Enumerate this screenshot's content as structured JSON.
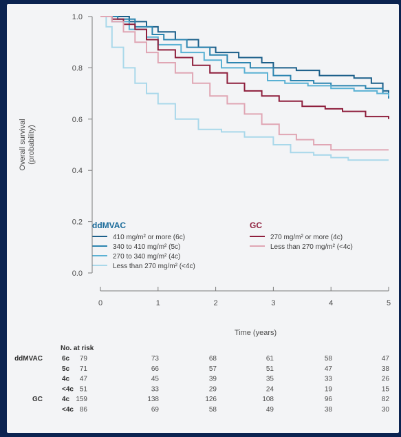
{
  "chart_data": {
    "type": "line",
    "xlabel": "Time (years)",
    "ylabel": [
      "Overall survival",
      "(probability)"
    ],
    "xlim": [
      0,
      5
    ],
    "ylim": [
      0,
      1
    ],
    "x_ticks": [
      "0",
      "1",
      "2",
      "3",
      "4",
      "5"
    ],
    "y_ticks": [
      "0.0",
      "0.2",
      "0.4",
      "0.6",
      "0.8",
      "1.0"
    ],
    "legend_groups": [
      {
        "title": "ddMVAC",
        "color": "#1a6b9a"
      },
      {
        "title": "GC",
        "color": "#8e1e3c"
      }
    ],
    "series": [
      {
        "name": "410 mg/m² or more (6c)",
        "group": "ddMVAC",
        "color": "#1b5f8a",
        "x": [
          0,
          0.2,
          0.5,
          0.8,
          1.0,
          1.3,
          1.7,
          2.0,
          2.4,
          2.8,
          3.0,
          3.4,
          3.8,
          4.0,
          4.4,
          4.7,
          4.9,
          5.0
        ],
        "y": [
          1.0,
          1.0,
          0.98,
          0.96,
          0.94,
          0.91,
          0.88,
          0.86,
          0.84,
          0.82,
          0.8,
          0.79,
          0.77,
          0.77,
          0.76,
          0.74,
          0.71,
          0.68
        ]
      },
      {
        "name": "340 to 410 mg/m² (5c)",
        "group": "ddMVAC",
        "color": "#2c85b0",
        "x": [
          0,
          0.3,
          0.6,
          0.9,
          1.1,
          1.5,
          1.9,
          2.2,
          2.6,
          3.0,
          3.3,
          3.7,
          4.0,
          4.3,
          4.6,
          4.9,
          5.0
        ],
        "y": [
          1.0,
          0.99,
          0.96,
          0.93,
          0.91,
          0.88,
          0.85,
          0.82,
          0.8,
          0.77,
          0.75,
          0.74,
          0.73,
          0.73,
          0.72,
          0.7,
          0.68
        ]
      },
      {
        "name": "270 to 340 mg/m² (4c)",
        "group": "ddMVAC",
        "color": "#5ab1d4",
        "x": [
          0,
          0.2,
          0.5,
          0.8,
          1.0,
          1.4,
          1.8,
          2.1,
          2.5,
          2.9,
          3.2,
          3.6,
          4.0,
          4.4,
          4.8,
          5.0
        ],
        "y": [
          1.0,
          0.98,
          0.95,
          0.92,
          0.89,
          0.86,
          0.83,
          0.8,
          0.78,
          0.75,
          0.74,
          0.73,
          0.72,
          0.71,
          0.7,
          0.69
        ]
      },
      {
        "name": "Less than 270 mg/m² (<4c)",
        "group": "ddMVAC",
        "color": "#a9d8ea",
        "x": [
          0,
          0.1,
          0.2,
          0.4,
          0.6,
          0.8,
          1.0,
          1.3,
          1.7,
          2.1,
          2.5,
          3.0,
          3.3,
          3.7,
          4.0,
          4.3,
          4.7,
          5.0
        ],
        "y": [
          1.0,
          0.96,
          0.88,
          0.8,
          0.74,
          0.7,
          0.66,
          0.6,
          0.56,
          0.55,
          0.53,
          0.5,
          0.47,
          0.46,
          0.45,
          0.44,
          0.44,
          0.44
        ]
      },
      {
        "name": "270 mg/m² or more (4c)",
        "group": "GC",
        "color": "#8e1e3c",
        "x": [
          0,
          0.2,
          0.4,
          0.6,
          0.8,
          1.0,
          1.3,
          1.6,
          1.9,
          2.2,
          2.5,
          2.8,
          3.1,
          3.5,
          3.9,
          4.2,
          4.6,
          5.0
        ],
        "y": [
          1.0,
          0.99,
          0.97,
          0.95,
          0.91,
          0.87,
          0.84,
          0.81,
          0.78,
          0.74,
          0.71,
          0.69,
          0.67,
          0.65,
          0.64,
          0.63,
          0.61,
          0.6
        ]
      },
      {
        "name": "Less than 270 mg/m² (<4c)",
        "group": "GC",
        "color": "#e0a6b4",
        "x": [
          0,
          0.2,
          0.4,
          0.6,
          0.8,
          1.0,
          1.3,
          1.6,
          1.9,
          2.2,
          2.5,
          2.8,
          3.1,
          3.4,
          3.7,
          4.0,
          4.4,
          5.0
        ],
        "y": [
          1.0,
          0.98,
          0.94,
          0.9,
          0.86,
          0.82,
          0.78,
          0.74,
          0.69,
          0.66,
          0.62,
          0.58,
          0.54,
          0.52,
          0.5,
          0.48,
          0.48,
          0.48
        ]
      }
    ],
    "risk_table": {
      "title": "No. at risk",
      "time_points": [
        0,
        1,
        2,
        3,
        4,
        5
      ],
      "rows": [
        {
          "group": "ddMVAC",
          "label": "6c",
          "color": "#1a6b9a",
          "values": [
            "79",
            "73",
            "68",
            "61",
            "58",
            "47"
          ]
        },
        {
          "group": "",
          "label": "5c",
          "color": "#2c85b0",
          "values": [
            "71",
            "66",
            "57",
            "51",
            "47",
            "38"
          ]
        },
        {
          "group": "",
          "label": "4c",
          "color": "#5ab1d4",
          "values": [
            "47",
            "45",
            "39",
            "35",
            "33",
            "26"
          ]
        },
        {
          "group": "",
          "label": "<4c",
          "color": "#a9d8ea",
          "values": [
            "51",
            "33",
            "29",
            "24",
            "19",
            "15"
          ]
        },
        {
          "group": "GC",
          "label": "4c",
          "color": "#8e1e3c",
          "values": [
            "159",
            "138",
            "126",
            "108",
            "96",
            "82"
          ]
        },
        {
          "group": "",
          "label": "<4c",
          "color": "#e0a6b4",
          "values": [
            "86",
            "69",
            "58",
            "49",
            "38",
            "30"
          ]
        }
      ]
    }
  }
}
